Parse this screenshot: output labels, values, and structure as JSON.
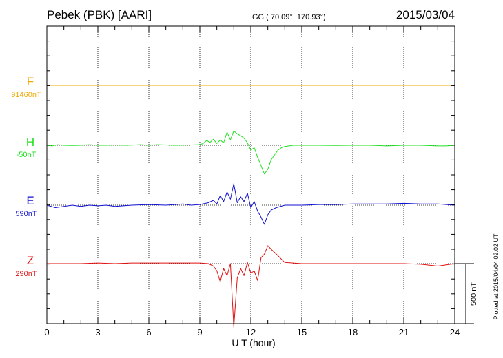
{
  "header": {
    "station": "Pebek (PBK)  [AARI]",
    "coords": "GG ( 70.09°, 170.93°)",
    "date": "2015/03/04"
  },
  "plotted_note": "Plotted at 2015/04/04 02:02 UT",
  "chart_data": {
    "type": "line",
    "xlabel": "U T (hour)",
    "xlim": [
      0,
      24
    ],
    "xticks": [
      0,
      3,
      6,
      9,
      12,
      15,
      18,
      21,
      24
    ],
    "vertical_grid": "dotted at every 3 hours",
    "scale_bar": {
      "label": "500 nT",
      "value_nT": 500
    },
    "series": [
      {
        "name": "F",
        "baseline": "91460nT",
        "baseline_nT": 91460,
        "color": "#f0a800",
        "x": [
          0,
          24
        ],
        "y": [
          0,
          0
        ]
      },
      {
        "name": "H",
        "baseline": "-50nT",
        "baseline_nT": -50,
        "color": "#20e020",
        "x": [
          0,
          0.3,
          0.6,
          1,
          1.5,
          2,
          2.5,
          3,
          3.5,
          4,
          4.5,
          5,
          5.5,
          6,
          6.5,
          7,
          7.5,
          8,
          8.5,
          9,
          9.2,
          9.4,
          9.6,
          9.8,
          10,
          10.2,
          10.4,
          10.6,
          10.8,
          11,
          11.2,
          11.4,
          11.6,
          11.8,
          12,
          12.2,
          12.4,
          12.6,
          12.8,
          13,
          13.2,
          13.4,
          13.6,
          13.8,
          14,
          14.5,
          15,
          16,
          17,
          18,
          19,
          20,
          21,
          22,
          23,
          23.5,
          24
        ],
        "y": [
          0,
          -5,
          5,
          0,
          -2,
          0,
          5,
          0,
          0,
          3,
          0,
          2,
          5,
          0,
          5,
          3,
          0,
          2,
          3,
          5,
          15,
          40,
          25,
          50,
          15,
          45,
          20,
          110,
          45,
          120,
          95,
          80,
          60,
          20,
          -40,
          -20,
          -100,
          -170,
          -240,
          -200,
          -120,
          -80,
          -40,
          -20,
          -10,
          0,
          0,
          0,
          -2,
          0,
          0,
          -5,
          0,
          0,
          -5,
          -5,
          0
        ]
      },
      {
        "name": "E",
        "baseline": "590nT",
        "baseline_nT": 590,
        "color": "#1010d0",
        "x": [
          0,
          0.5,
          1,
          1.5,
          2,
          2.5,
          3,
          3.5,
          4,
          4.5,
          5,
          6,
          7,
          8,
          8.5,
          9,
          9.5,
          9.8,
          10,
          10.2,
          10.4,
          10.6,
          10.8,
          11,
          11.2,
          11.4,
          11.6,
          11.8,
          12,
          12.2,
          12.4,
          12.6,
          12.8,
          13,
          13.2,
          13.5,
          14,
          15,
          16,
          17,
          18,
          19,
          20,
          21,
          22,
          23,
          23.5,
          24
        ],
        "y": [
          0,
          -20,
          -10,
          0,
          -10,
          0,
          -5,
          0,
          -10,
          -5,
          0,
          5,
          0,
          10,
          0,
          5,
          20,
          40,
          10,
          80,
          30,
          110,
          50,
          180,
          20,
          70,
          30,
          100,
          -20,
          30,
          -50,
          -100,
          -160,
          -80,
          -40,
          -20,
          0,
          0,
          5,
          5,
          10,
          10,
          10,
          15,
          10,
          10,
          5,
          0
        ]
      },
      {
        "name": "Z",
        "baseline": "290nT",
        "baseline_nT": 290,
        "color": "#e01010",
        "x": [
          0,
          1,
          2,
          3,
          4,
          5,
          6,
          7,
          8,
          9,
          9.5,
          9.8,
          10,
          10.2,
          10.4,
          10.6,
          10.8,
          11,
          11.2,
          11.4,
          11.6,
          11.8,
          12,
          12.2,
          12.4,
          12.6,
          12.8,
          13,
          13.2,
          13.5,
          14,
          15,
          16,
          17,
          18,
          19,
          20,
          21,
          22,
          23,
          23.5,
          24
        ],
        "y": [
          0,
          0,
          0,
          5,
          0,
          5,
          5,
          5,
          5,
          5,
          0,
          -20,
          -60,
          -150,
          -40,
          -100,
          0,
          -530,
          -120,
          -40,
          -100,
          10,
          -80,
          -60,
          -140,
          50,
          80,
          150,
          120,
          80,
          10,
          0,
          0,
          0,
          0,
          0,
          0,
          0,
          -5,
          -20,
          -10,
          0
        ]
      }
    ]
  }
}
